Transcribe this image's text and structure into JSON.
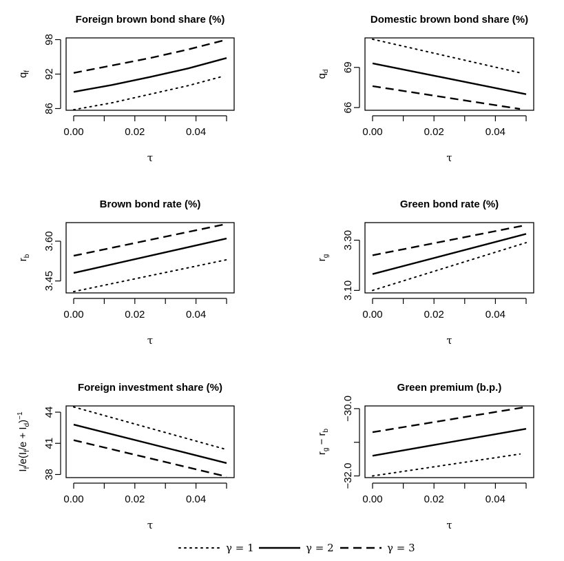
{
  "chart_data": [
    {
      "type": "line",
      "title": "Foreign brown bond share (%)",
      "xlabel": "τ",
      "ylabel": {
        "base": "q",
        "sub": "f"
      },
      "xlim": [
        0,
        0.05
      ],
      "ylim": [
        85.7,
        98.3
      ],
      "x_ticks": [
        0.0,
        0.02,
        0.04
      ],
      "x_tick_labels": [
        "0.00",
        "0.02",
        "0.04"
      ],
      "x_minor_ticks": [
        0.0,
        0.01,
        0.02,
        0.03,
        0.04,
        0.05
      ],
      "y_ticks": [
        86,
        92,
        98
      ],
      "y_tick_labels": [
        "86",
        "92",
        "98"
      ],
      "series": [
        {
          "name": "γ = 1",
          "x": [
            0,
            0.0125,
            0.025,
            0.0375,
            0.048
          ],
          "y": [
            85.8,
            87.0,
            88.5,
            90.0,
            91.5
          ]
        },
        {
          "name": "γ = 2",
          "x": [
            0,
            0.0125,
            0.025,
            0.0375,
            0.05
          ],
          "y": [
            88.9,
            90.1,
            91.5,
            93.0,
            94.8
          ]
        },
        {
          "name": "γ = 3",
          "x": [
            0,
            0.0125,
            0.025,
            0.0375,
            0.05
          ],
          "y": [
            92.2,
            93.5,
            94.8,
            96.3,
            98.0
          ]
        }
      ]
    },
    {
      "type": "line",
      "title": "Domestic brown bond share  (%)",
      "xlabel": "τ",
      "ylabel": {
        "base": "q",
        "sub": "d"
      },
      "xlim": [
        0,
        0.05
      ],
      "ylim": [
        65.8,
        71.2
      ],
      "x_ticks": [
        0.0,
        0.02,
        0.04
      ],
      "x_tick_labels": [
        "0.00",
        "0.02",
        "0.04"
      ],
      "x_minor_ticks": [
        0.0,
        0.01,
        0.02,
        0.03,
        0.04,
        0.05
      ],
      "y_ticks": [
        66,
        69
      ],
      "y_tick_labels": [
        "66",
        "69"
      ],
      "series": [
        {
          "name": "γ = 1",
          "x": [
            0,
            0.048
          ],
          "y": [
            71.1,
            68.6
          ]
        },
        {
          "name": "γ = 2",
          "x": [
            0,
            0.05
          ],
          "y": [
            69.3,
            67.0
          ]
        },
        {
          "name": "γ = 3",
          "x": [
            0,
            0.048
          ],
          "y": [
            67.6,
            65.9
          ]
        }
      ]
    },
    {
      "type": "line",
      "title": "Brown bond rate (%)",
      "xlabel": "τ",
      "ylabel": {
        "base": "r",
        "sub": "b"
      },
      "xlim": [
        0,
        0.05
      ],
      "ylim": [
        3.405,
        3.67
      ],
      "x_ticks": [
        0.0,
        0.02,
        0.04
      ],
      "x_tick_labels": [
        "0.00",
        "0.02",
        "0.04"
      ],
      "x_minor_ticks": [
        0.0,
        0.01,
        0.02,
        0.03,
        0.04,
        0.05
      ],
      "y_ticks": [
        3.45,
        3.6
      ],
      "y_tick_labels": [
        "3.45",
        "3.60"
      ],
      "series": [
        {
          "name": "γ = 1",
          "x": [
            0,
            0.05
          ],
          "y": [
            3.41,
            3.53
          ]
        },
        {
          "name": "γ = 2",
          "x": [
            0,
            0.05
          ],
          "y": [
            3.48,
            3.61
          ]
        },
        {
          "name": "γ = 3",
          "x": [
            0,
            0.05
          ],
          "y": [
            3.545,
            3.665
          ]
        }
      ]
    },
    {
      "type": "line",
      "title": "Green bond rate (%)",
      "xlabel": "τ",
      "ylabel": {
        "base": "r",
        "sub": "g"
      },
      "xlim": [
        0,
        0.05
      ],
      "ylim": [
        3.09,
        3.37
      ],
      "x_ticks": [
        0.0,
        0.02,
        0.04
      ],
      "x_tick_labels": [
        "0.00",
        "0.02",
        "0.04"
      ],
      "x_minor_ticks": [
        0.0,
        0.01,
        0.02,
        0.03,
        0.04,
        0.05
      ],
      "y_ticks": [
        3.1,
        3.3
      ],
      "y_tick_labels": [
        "3.10",
        "3.30"
      ],
      "series": [
        {
          "name": "γ = 1",
          "x": [
            0,
            0.05
          ],
          "y": [
            3.1,
            3.29
          ]
        },
        {
          "name": "γ = 2",
          "x": [
            0,
            0.05
          ],
          "y": [
            3.165,
            3.325
          ]
        },
        {
          "name": "γ = 3",
          "x": [
            0,
            0.05
          ],
          "y": [
            3.24,
            3.36
          ]
        }
      ]
    },
    {
      "type": "line",
      "title": "Foreign investment share (%)",
      "xlabel": "τ",
      "ylabel": {
        "parts": [
          [
            "I",
            ""
          ],
          [
            "f",
            "sub"
          ],
          [
            "/e(I",
            ""
          ],
          [
            "f",
            "sub"
          ],
          [
            "/e + I",
            ""
          ],
          [
            "d",
            "sub"
          ],
          [
            ")",
            ""
          ],
          [
            "−1",
            "sup"
          ]
        ]
      },
      "xlim": [
        0,
        0.05
      ],
      "ylim": [
        37.7,
        44.6
      ],
      "x_ticks": [
        0.0,
        0.02,
        0.04
      ],
      "x_tick_labels": [
        "0.00",
        "0.02",
        "0.04"
      ],
      "x_minor_ticks": [
        0.0,
        0.01,
        0.02,
        0.03,
        0.04,
        0.05
      ],
      "y_ticks": [
        38,
        41,
        44
      ],
      "y_tick_labels": [
        "38",
        "41",
        "44"
      ],
      "series": [
        {
          "name": "γ = 1",
          "x": [
            0,
            0.05
          ],
          "y": [
            44.5,
            40.4
          ]
        },
        {
          "name": "γ = 2",
          "x": [
            0,
            0.05
          ],
          "y": [
            42.8,
            39.1
          ]
        },
        {
          "name": "γ = 3",
          "x": [
            0,
            0.05
          ],
          "y": [
            41.3,
            37.8
          ]
        }
      ]
    },
    {
      "type": "line",
      "title": "Green premium (b.p.)",
      "xlabel": "τ",
      "ylabel": {
        "parts": [
          [
            "r",
            ""
          ],
          [
            "g",
            "sub"
          ],
          [
            " − r",
            ""
          ],
          [
            "b",
            "sub"
          ]
        ]
      },
      "xlim": [
        0,
        0.05
      ],
      "ylim": [
        -32.05,
        -29.92
      ],
      "x_ticks": [
        0.0,
        0.02,
        0.04
      ],
      "x_tick_labels": [
        "0.00",
        "0.02",
        "0.04"
      ],
      "x_minor_ticks": [
        0.0,
        0.01,
        0.02,
        0.03,
        0.04,
        0.05
      ],
      "y_ticks": [
        -32.0,
        -31.0,
        -30.0
      ],
      "y_tick_labels": [
        "−32.0",
        "",
        "−30.0"
      ],
      "series": [
        {
          "name": "γ = 1",
          "x": [
            0,
            0.048
          ],
          "y": [
            -32.0,
            -31.35
          ]
        },
        {
          "name": "γ = 2",
          "x": [
            0,
            0.05
          ],
          "y": [
            -31.4,
            -30.6
          ]
        },
        {
          "name": "γ = 3",
          "x": [
            0,
            0.05
          ],
          "y": [
            -30.7,
            -29.95
          ]
        }
      ]
    }
  ],
  "legend": {
    "placement": "bottom",
    "entries": [
      {
        "label": "γ = 1",
        "style": "dotted"
      },
      {
        "label": "γ = 2",
        "style": "solid"
      },
      {
        "label": "γ = 3",
        "style": "dashed"
      }
    ]
  }
}
